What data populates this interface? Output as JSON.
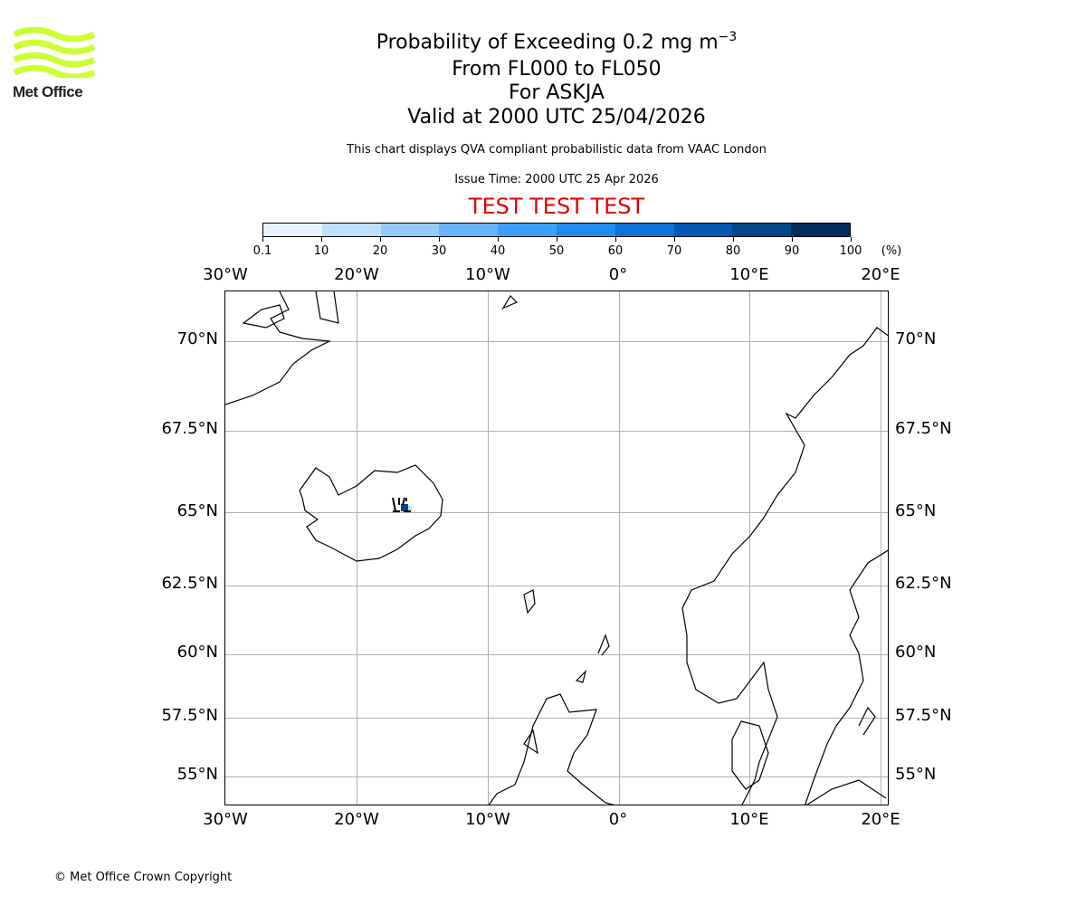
{
  "logo": {
    "text": "Met Office",
    "color": "#ccff33"
  },
  "header": {
    "title_prefix": "Probability of Exceeding 0.2 mg m",
    "title_sup": "−3",
    "line2": "From FL000 to FL050",
    "line3": "For ASKJA",
    "line4": "Valid at 2000 UTC 25/04/2026",
    "subtitle": "This chart displays QVA compliant probabilistic data from VAAC London",
    "issue_time": "Issue Time: 2000 UTC 25 Apr 2026",
    "test_banner": "TEST TEST TEST"
  },
  "colorbar": {
    "ticks": [
      "0.1",
      "10",
      "20",
      "30",
      "40",
      "50",
      "60",
      "70",
      "80",
      "90",
      "100"
    ],
    "unit": "(%)",
    "colors": [
      "#e6f3fe",
      "#bee0fc",
      "#94cbfc",
      "#6ab4fb",
      "#3ca0fa",
      "#1e8cf0",
      "#0f73d8",
      "#0559b4",
      "#03478a",
      "#032e5c"
    ]
  },
  "map": {
    "lon_labels": [
      "30°W",
      "20°W",
      "10°W",
      "0°",
      "10°E",
      "20°E"
    ],
    "lat_labels": [
      "70°N",
      "67.5°N",
      "65°N",
      "62.5°N",
      "60°N",
      "57.5°N",
      "55°N"
    ],
    "volcano": "ASKJA"
  },
  "footer": {
    "copyright": "© Met Office Crown Copyright"
  },
  "chart_data": {
    "type": "heatmap",
    "title": "Probability of Exceeding 0.2 mg m−3 From FL000 to FL050 For ASKJA Valid at 2000 UTC 25/04/2026",
    "colorbar_levels": [
      0.1,
      10,
      20,
      30,
      40,
      50,
      60,
      70,
      80,
      90,
      100
    ],
    "colorbar_unit": "%",
    "extent": {
      "lon": [
        -30,
        20
      ],
      "lat": [
        54,
        71.5
      ]
    },
    "features": [
      {
        "name": "ASKJA ash cloud",
        "lon": -16.7,
        "lat": 65.0,
        "max_probability_bin": "80-90"
      }
    ]
  }
}
